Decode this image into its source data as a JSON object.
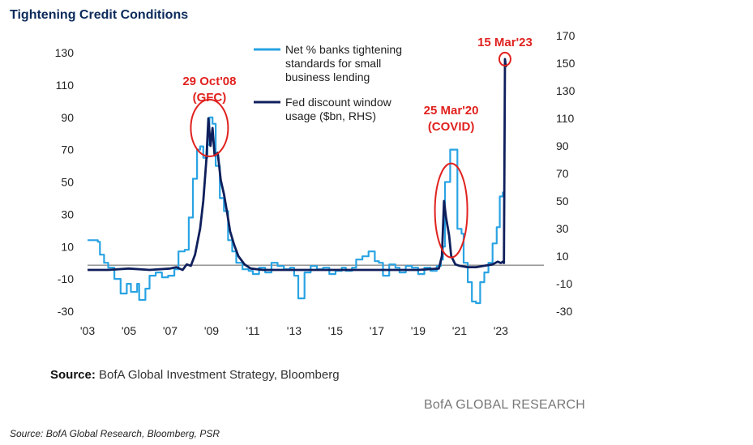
{
  "page": {
    "title": "Tightening Credit Conditions",
    "source_label": "Source:",
    "source_text": "BofA Global Investment Strategy, Bloomberg",
    "brand": "BofA GLOBAL RESEARCH",
    "footnote": "Source: BofA Global Research, Bloomberg, PSR"
  },
  "chart_data": {
    "type": "line",
    "title": "",
    "x_ticks": [
      "'03",
      "'05",
      "'07",
      "'09",
      "'11",
      "'13",
      "'15",
      "'17",
      "'19",
      "'21",
      "'23"
    ],
    "x_tick_years": [
      2003,
      2005,
      2007,
      2009,
      2011,
      2013,
      2015,
      2017,
      2019,
      2021,
      2023
    ],
    "xlim": [
      2003,
      2024.3
    ],
    "y_left": {
      "ticks": [
        130,
        110,
        90,
        70,
        50,
        30,
        10,
        -10,
        -30
      ],
      "ylim": [
        -30,
        130
      ]
    },
    "y_right": {
      "ticks": [
        170,
        150,
        130,
        110,
        90,
        70,
        50,
        30,
        10,
        -10,
        -30
      ],
      "ylim": [
        -30,
        170
      ]
    },
    "reference_line": {
      "axis": "left",
      "value": -1.5
    },
    "legend_position": "top-center",
    "series": [
      {
        "name": "Net % banks tightening standards for small business lending",
        "axis": "left",
        "color": "#29a3e3",
        "points": [
          [
            2003.0,
            14
          ],
          [
            2003.5,
            13
          ],
          [
            2003.6,
            5
          ],
          [
            2003.8,
            0
          ],
          [
            2004.0,
            -3
          ],
          [
            2004.3,
            -10
          ],
          [
            2004.6,
            -19
          ],
          [
            2004.9,
            -13
          ],
          [
            2005.1,
            -18
          ],
          [
            2005.4,
            -13
          ],
          [
            2005.5,
            -23
          ],
          [
            2005.8,
            -16
          ],
          [
            2006.0,
            -8
          ],
          [
            2006.3,
            -6
          ],
          [
            2006.6,
            -9
          ],
          [
            2006.9,
            -8
          ],
          [
            2007.2,
            -4
          ],
          [
            2007.4,
            7
          ],
          [
            2007.7,
            8
          ],
          [
            2007.9,
            28
          ],
          [
            2008.1,
            52
          ],
          [
            2008.3,
            70
          ],
          [
            2008.45,
            72
          ],
          [
            2008.6,
            65
          ],
          [
            2008.8,
            73
          ],
          [
            2008.9,
            90
          ],
          [
            2009.05,
            86
          ],
          [
            2009.2,
            60
          ],
          [
            2009.4,
            40
          ],
          [
            2009.6,
            32
          ],
          [
            2009.8,
            14
          ],
          [
            2010.0,
            7
          ],
          [
            2010.2,
            0
          ],
          [
            2010.5,
            -4
          ],
          [
            2010.8,
            -5
          ],
          [
            2011.0,
            -7
          ],
          [
            2011.3,
            -3
          ],
          [
            2011.6,
            -6
          ],
          [
            2011.9,
            0
          ],
          [
            2012.2,
            -2
          ],
          [
            2012.5,
            -4
          ],
          [
            2012.8,
            -3
          ],
          [
            2013.0,
            -8
          ],
          [
            2013.2,
            -22
          ],
          [
            2013.5,
            -6
          ],
          [
            2013.8,
            -2
          ],
          [
            2014.1,
            -4
          ],
          [
            2014.4,
            -3
          ],
          [
            2014.7,
            -7
          ],
          [
            2015.0,
            -5
          ],
          [
            2015.3,
            -3
          ],
          [
            2015.5,
            -5
          ],
          [
            2015.8,
            -3
          ],
          [
            2016.0,
            2
          ],
          [
            2016.3,
            4
          ],
          [
            2016.6,
            7
          ],
          [
            2016.9,
            1
          ],
          [
            2017.1,
            0
          ],
          [
            2017.3,
            -8
          ],
          [
            2017.6,
            -1
          ],
          [
            2017.9,
            -3
          ],
          [
            2018.1,
            -6
          ],
          [
            2018.4,
            -2
          ],
          [
            2018.7,
            -3
          ],
          [
            2019.0,
            -7
          ],
          [
            2019.3,
            -3
          ],
          [
            2019.6,
            -5
          ],
          [
            2019.9,
            -2
          ],
          [
            2020.1,
            2
          ],
          [
            2020.2,
            10
          ],
          [
            2020.3,
            50
          ],
          [
            2020.45,
            50
          ],
          [
            2020.55,
            70
          ],
          [
            2020.8,
            70
          ],
          [
            2020.9,
            21
          ],
          [
            2021.1,
            18
          ],
          [
            2021.2,
            0
          ],
          [
            2021.4,
            -12
          ],
          [
            2021.6,
            -24
          ],
          [
            2021.8,
            -25
          ],
          [
            2022.0,
            -12
          ],
          [
            2022.2,
            -6
          ],
          [
            2022.4,
            0
          ],
          [
            2022.6,
            12
          ],
          [
            2022.8,
            22
          ],
          [
            2022.95,
            41
          ],
          [
            2023.1,
            44
          ]
        ]
      },
      {
        "name": "Fed discount window usage ($bn, RHS)",
        "axis": "right",
        "color": "#0f1f5c",
        "points": [
          [
            2003.0,
            0
          ],
          [
            2004.0,
            0
          ],
          [
            2005.0,
            1
          ],
          [
            2006.0,
            0
          ],
          [
            2007.0,
            1
          ],
          [
            2007.3,
            2
          ],
          [
            2007.6,
            0
          ],
          [
            2007.8,
            4
          ],
          [
            2008.0,
            3
          ],
          [
            2008.2,
            11
          ],
          [
            2008.45,
            30
          ],
          [
            2008.6,
            50
          ],
          [
            2008.75,
            80
          ],
          [
            2008.85,
            110
          ],
          [
            2008.95,
            90
          ],
          [
            2009.05,
            103
          ],
          [
            2009.15,
            83
          ],
          [
            2009.3,
            85
          ],
          [
            2009.45,
            65
          ],
          [
            2009.6,
            55
          ],
          [
            2009.75,
            42
          ],
          [
            2009.9,
            28
          ],
          [
            2010.1,
            18
          ],
          [
            2010.3,
            10
          ],
          [
            2010.6,
            4
          ],
          [
            2010.9,
            1
          ],
          [
            2011.5,
            0
          ],
          [
            2013.0,
            0
          ],
          [
            2015.0,
            0
          ],
          [
            2017.0,
            0
          ],
          [
            2019.0,
            0
          ],
          [
            2020.0,
            1
          ],
          [
            2020.15,
            10
          ],
          [
            2020.25,
            50
          ],
          [
            2020.35,
            38
          ],
          [
            2020.5,
            25
          ],
          [
            2020.6,
            10
          ],
          [
            2020.8,
            4
          ],
          [
            2021.0,
            3
          ],
          [
            2021.4,
            2
          ],
          [
            2021.8,
            2
          ],
          [
            2022.2,
            3
          ],
          [
            2022.6,
            4
          ],
          [
            2022.85,
            6
          ],
          [
            2023.0,
            5
          ],
          [
            2023.1,
            6
          ],
          [
            2023.15,
            5
          ],
          [
            2023.2,
            153
          ],
          [
            2023.25,
            147
          ]
        ]
      }
    ],
    "annotations": [
      {
        "lines": [
          "29 Oct'08",
          "(GFC)"
        ],
        "color": "#e0221f",
        "x": 2008.9,
        "y_right": 103,
        "circle": true
      },
      {
        "lines": [
          "25 Mar'20",
          "(COVID)"
        ],
        "color": "#e0221f",
        "x": 2020.4,
        "y_right": 52,
        "circle": true
      },
      {
        "lines": [
          "15 Mar'23"
        ],
        "color": "#e0221f",
        "x": 2023.2,
        "y_right": 153,
        "circle": true
      }
    ]
  }
}
